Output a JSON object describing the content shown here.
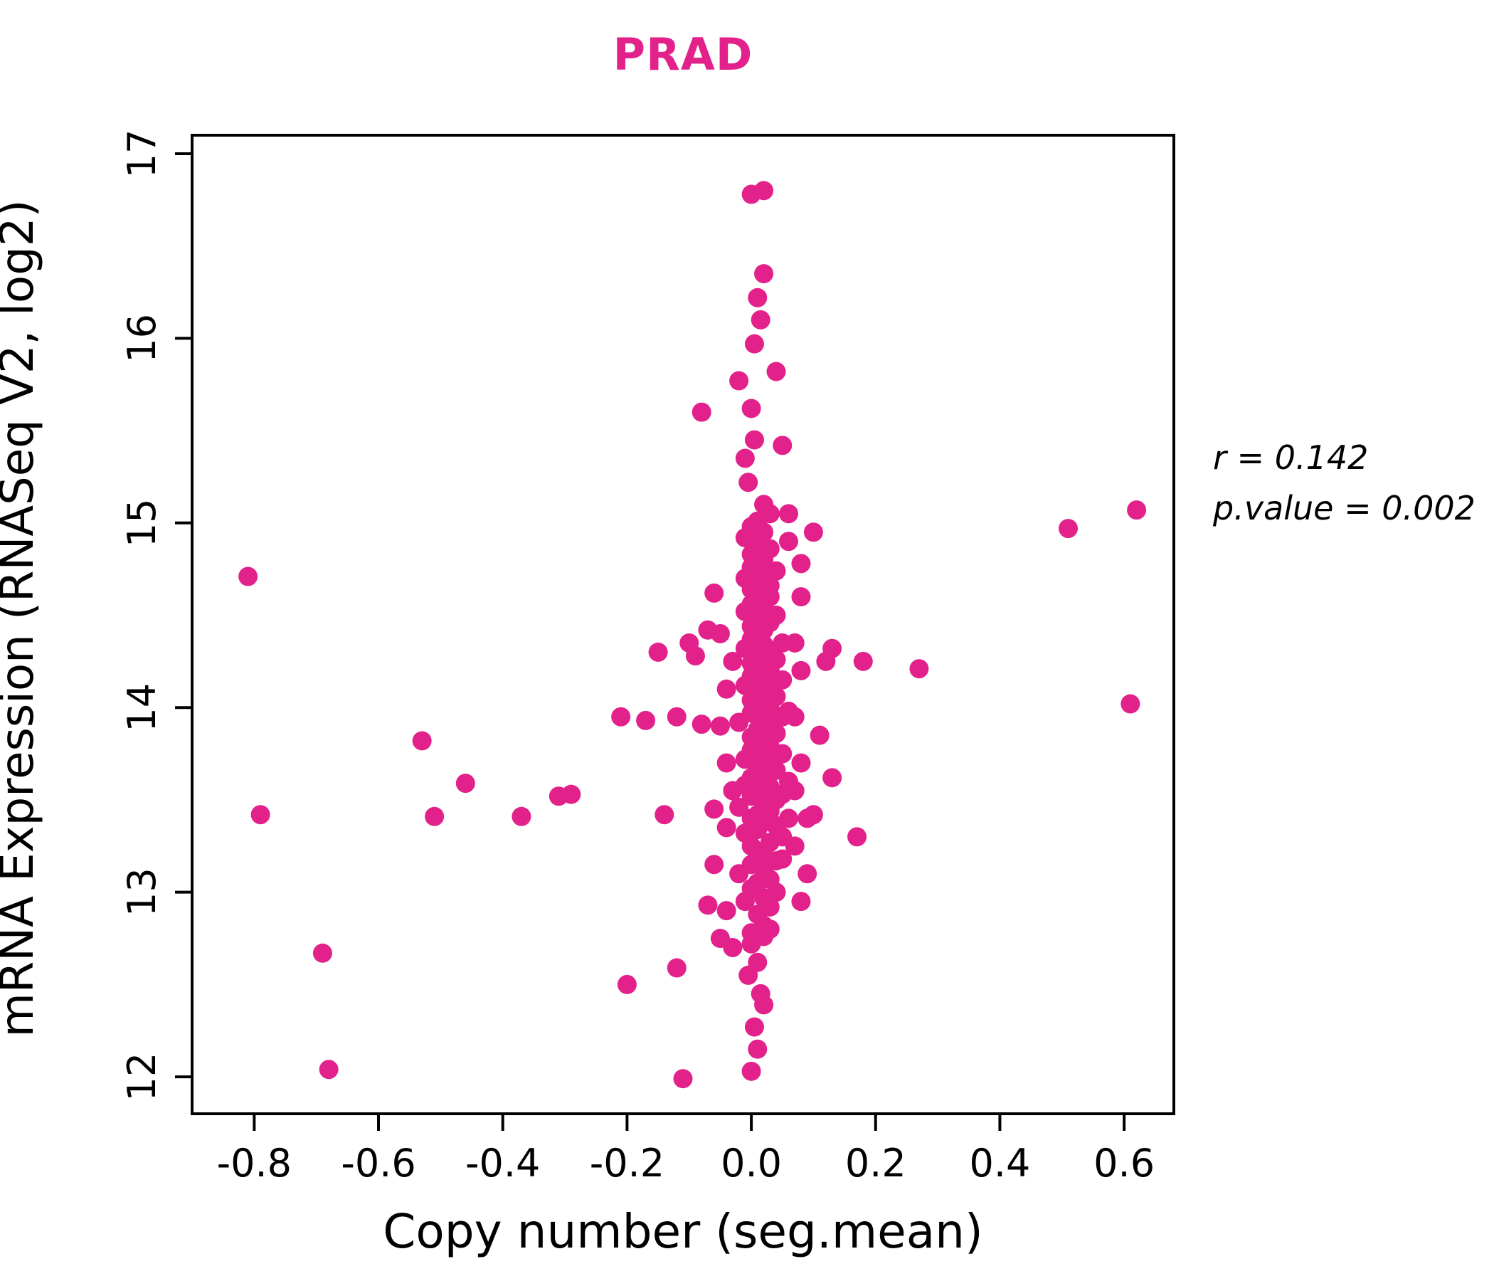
{
  "chart_data": {
    "type": "scatter",
    "title": "PRAD",
    "xlabel": "Copy number (seg.mean)",
    "ylabel": "mRNA Expression (RNASeq V2, log2)",
    "annotation": {
      "line1": "r = 0.142",
      "line2": "p.value = 0.002"
    },
    "title_color": "#e3218a",
    "point_color": "#e3218a",
    "axis_color": "#000000",
    "xlim": [
      -0.9,
      0.68
    ],
    "ylim": [
      11.8,
      17.1
    ],
    "xtick_values": [
      -0.8,
      -0.6,
      -0.4,
      -0.2,
      0.0,
      0.2,
      0.4,
      0.6
    ],
    "xtick_labels": [
      "-0.8",
      "-0.6",
      "-0.4",
      "-0.2",
      "0.0",
      "0.2",
      "0.4",
      "0.6"
    ],
    "ytick_values": [
      12,
      13,
      14,
      15,
      16,
      17
    ],
    "ytick_labels": [
      "12",
      "13",
      "14",
      "15",
      "16",
      "17"
    ],
    "legend": "none",
    "grid": false,
    "points": [
      [
        -0.81,
        14.71
      ],
      [
        -0.79,
        13.42
      ],
      [
        -0.69,
        12.67
      ],
      [
        -0.68,
        12.04
      ],
      [
        -0.53,
        13.82
      ],
      [
        -0.51,
        13.41
      ],
      [
        -0.46,
        13.59
      ],
      [
        -0.37,
        13.41
      ],
      [
        -0.31,
        13.52
      ],
      [
        -0.29,
        13.53
      ],
      [
        -0.21,
        13.95
      ],
      [
        -0.2,
        12.5
      ],
      [
        -0.17,
        13.93
      ],
      [
        -0.15,
        14.3
      ],
      [
        -0.14,
        13.42
      ],
      [
        -0.12,
        12.59
      ],
      [
        -0.12,
        13.95
      ],
      [
        -0.11,
        11.99
      ],
      [
        -0.1,
        14.35
      ],
      [
        -0.09,
        14.28
      ],
      [
        -0.08,
        15.6
      ],
      [
        -0.08,
        13.91
      ],
      [
        -0.07,
        14.42
      ],
      [
        -0.07,
        12.93
      ],
      [
        -0.06,
        14.62
      ],
      [
        -0.06,
        13.45
      ],
      [
        -0.06,
        13.15
      ],
      [
        -0.05,
        12.75
      ],
      [
        -0.05,
        13.9
      ],
      [
        -0.05,
        14.4
      ],
      [
        -0.04,
        14.1
      ],
      [
        -0.04,
        13.7
      ],
      [
        -0.04,
        13.35
      ],
      [
        -0.04,
        12.9
      ],
      [
        -0.03,
        14.25
      ],
      [
        -0.03,
        13.55
      ],
      [
        -0.03,
        12.7
      ],
      [
        0.0,
        16.78
      ],
      [
        0.02,
        16.8
      ],
      [
        0.02,
        16.35
      ],
      [
        0.01,
        16.22
      ],
      [
        0.015,
        16.1
      ],
      [
        0.005,
        15.97
      ],
      [
        -0.02,
        15.77
      ],
      [
        0.04,
        15.82
      ],
      [
        0.0,
        15.62
      ],
      [
        0.005,
        15.45
      ],
      [
        -0.01,
        15.35
      ],
      [
        0.05,
        15.42
      ],
      [
        -0.005,
        15.22
      ],
      [
        0.0,
        12.03
      ],
      [
        0.01,
        12.15
      ],
      [
        0.005,
        12.27
      ],
      [
        0.02,
        12.39
      ],
      [
        0.015,
        12.45
      ],
      [
        -0.005,
        12.55
      ],
      [
        0.01,
        12.62
      ],
      [
        0.0,
        12.72
      ],
      [
        0.02,
        12.76
      ],
      [
        0.03,
        12.8
      ],
      [
        0.06,
        15.05
      ],
      [
        0.1,
        14.95
      ],
      [
        0.08,
        14.78
      ],
      [
        0.51,
        14.97
      ],
      [
        0.62,
        15.07
      ],
      [
        0.61,
        14.02
      ],
      [
        0.27,
        14.21
      ],
      [
        0.18,
        14.25
      ],
      [
        0.17,
        13.3
      ],
      [
        0.13,
        14.32
      ],
      [
        0.12,
        14.25
      ],
      [
        0.11,
        13.85
      ],
      [
        0.13,
        13.62
      ],
      [
        0.1,
        13.42
      ],
      [
        0.09,
        13.1
      ],
      [
        0.08,
        12.95
      ],
      [
        0.07,
        14.35
      ],
      [
        0.08,
        14.2
      ],
      [
        0.07,
        13.95
      ],
      [
        0.08,
        13.7
      ],
      [
        0.07,
        13.55
      ],
      [
        0.09,
        13.4
      ],
      [
        0.07,
        13.25
      ],
      [
        0.08,
        14.6
      ],
      [
        0.06,
        14.9
      ],
      [
        0.0,
        12.78
      ],
      [
        0.02,
        12.82
      ],
      [
        0.01,
        12.88
      ],
      [
        0.03,
        12.92
      ],
      [
        -0.01,
        12.95
      ],
      [
        0.02,
        12.97
      ],
      [
        0.04,
        13.0
      ],
      [
        0.0,
        13.02
      ],
      [
        0.01,
        13.05
      ],
      [
        0.03,
        13.07
      ],
      [
        -0.02,
        13.1
      ],
      [
        0.02,
        13.12
      ],
      [
        0.0,
        13.15
      ],
      [
        0.04,
        13.17
      ],
      [
        0.05,
        13.18
      ],
      [
        0.01,
        13.2
      ],
      [
        0.02,
        13.22
      ],
      [
        0.0,
        13.25
      ],
      [
        0.03,
        13.27
      ],
      [
        0.05,
        13.3
      ],
      [
        -0.01,
        13.32
      ],
      [
        0.01,
        13.34
      ],
      [
        0.04,
        13.36
      ],
      [
        0.02,
        13.38
      ],
      [
        0.06,
        13.4
      ],
      [
        0.0,
        13.4
      ],
      [
        0.01,
        13.42
      ],
      [
        0.03,
        13.44
      ],
      [
        -0.02,
        13.46
      ],
      [
        0.02,
        13.48
      ],
      [
        0.04,
        13.5
      ],
      [
        0.0,
        13.52
      ],
      [
        0.05,
        13.53
      ],
      [
        0.01,
        13.55
      ],
      [
        0.03,
        13.57
      ],
      [
        -0.01,
        13.58
      ],
      [
        0.02,
        13.6
      ],
      [
        0.06,
        13.6
      ],
      [
        0.0,
        13.62
      ],
      [
        0.02,
        13.64
      ],
      [
        0.04,
        13.66
      ],
      [
        0.01,
        13.68
      ],
      [
        0.03,
        13.7
      ],
      [
        -0.01,
        13.72
      ],
      [
        0.02,
        13.74
      ],
      [
        0.05,
        13.75
      ],
      [
        0.0,
        13.77
      ],
      [
        0.03,
        13.79
      ],
      [
        0.01,
        13.8
      ],
      [
        0.02,
        13.82
      ],
      [
        0.0,
        13.84
      ],
      [
        0.04,
        13.86
      ],
      [
        0.01,
        13.88
      ],
      [
        0.03,
        13.9
      ],
      [
        -0.02,
        13.92
      ],
      [
        0.02,
        13.94
      ],
      [
        0.05,
        13.95
      ],
      [
        0.0,
        13.97
      ],
      [
        0.01,
        13.99
      ],
      [
        0.03,
        14.0
      ],
      [
        0.06,
        13.98
      ],
      [
        0.02,
        14.02
      ],
      [
        0.0,
        14.04
      ],
      [
        0.04,
        14.06
      ],
      [
        0.01,
        14.08
      ],
      [
        0.03,
        14.1
      ],
      [
        -0.01,
        14.12
      ],
      [
        0.02,
        14.14
      ],
      [
        0.05,
        14.15
      ],
      [
        0.0,
        14.17
      ],
      [
        0.01,
        14.19
      ],
      [
        0.03,
        14.2
      ],
      [
        0.02,
        14.22
      ],
      [
        0.0,
        14.24
      ],
      [
        0.04,
        14.26
      ],
      [
        0.01,
        14.28
      ],
      [
        0.03,
        14.3
      ],
      [
        -0.01,
        14.32
      ],
      [
        0.02,
        14.34
      ],
      [
        0.05,
        14.35
      ],
      [
        0.0,
        14.37
      ],
      [
        0.01,
        14.39
      ],
      [
        0.02,
        14.42
      ],
      [
        0.0,
        14.44
      ],
      [
        0.03,
        14.46
      ],
      [
        0.01,
        14.48
      ],
      [
        0.04,
        14.5
      ],
      [
        -0.01,
        14.52
      ],
      [
        0.02,
        14.54
      ],
      [
        0.0,
        14.56
      ],
      [
        0.01,
        14.58
      ],
      [
        0.03,
        14.6
      ],
      [
        0.02,
        14.62
      ],
      [
        0.0,
        14.64
      ],
      [
        0.03,
        14.66
      ],
      [
        0.01,
        14.68
      ],
      [
        -0.01,
        14.7
      ],
      [
        0.02,
        14.72
      ],
      [
        0.04,
        14.74
      ],
      [
        0.0,
        14.76
      ],
      [
        0.01,
        14.78
      ],
      [
        0.02,
        14.8
      ],
      [
        0.0,
        14.83
      ],
      [
        0.03,
        14.86
      ],
      [
        0.01,
        14.89
      ],
      [
        -0.01,
        14.92
      ],
      [
        0.02,
        14.95
      ],
      [
        0.0,
        14.98
      ],
      [
        0.01,
        15.01
      ],
      [
        0.03,
        15.05
      ],
      [
        0.02,
        15.1
      ]
    ]
  }
}
